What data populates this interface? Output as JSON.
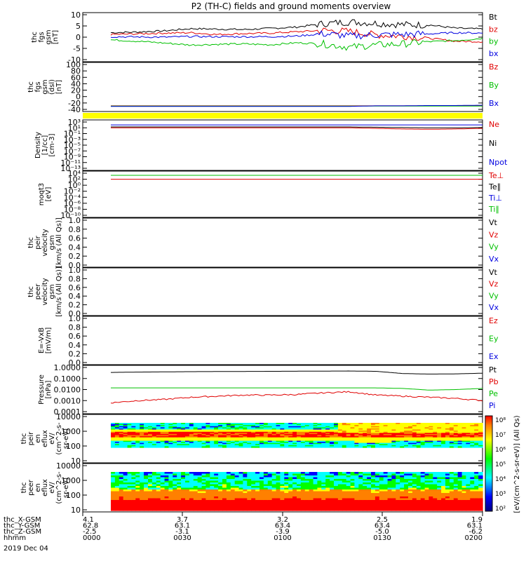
{
  "title": "P2 (TH-C) fields and ground moments overview",
  "panels": [
    {
      "id": "fgs",
      "ylabel": [
        "thc",
        "fgs",
        "gsm",
        "[nT]"
      ],
      "ticks": [
        "10",
        "5",
        "0",
        "-5",
        "-10"
      ],
      "legend": [
        {
          "label": "Bt",
          "color": "#000000"
        },
        {
          "label": "bz",
          "color": "#e00000"
        },
        {
          "label": "by",
          "color": "#00c000"
        },
        {
          "label": "bx",
          "color": "#0000e0"
        }
      ]
    },
    {
      "id": "fgs_dsl",
      "ylabel": [
        "thc",
        "fgs",
        "gsm",
        "(dsl)",
        "[nT]"
      ],
      "ticks": [
        "100",
        "80",
        "60",
        "40",
        "20",
        "0",
        "-20",
        "-40"
      ],
      "legend": [
        {
          "label": "Bz",
          "color": "#e00000"
        },
        {
          "label": "By",
          "color": "#00c000"
        },
        {
          "label": "Bx",
          "color": "#0000e0"
        }
      ]
    },
    {
      "id": "density",
      "ylabel": [
        "Density",
        "[1/cc]",
        "[cm-3]"
      ],
      "ticks": [
        "10³",
        "10¹",
        "10⁻¹",
        "10⁻³",
        "10⁻⁵",
        "10⁻⁷",
        "10⁻⁹",
        "10⁻¹¹",
        "10⁻¹³"
      ],
      "legend": [
        {
          "label": "Ne",
          "color": "#e00000"
        },
        {
          "label": "Ni",
          "color": "#000000"
        },
        {
          "label": "Npot",
          "color": "#0000e0"
        }
      ]
    },
    {
      "id": "temp",
      "ylabel": [
        "moqt3",
        "[eV]"
      ],
      "ticks": [
        "10⁴",
        "10²",
        "10⁰",
        "10⁻²",
        "10⁻⁴",
        "10⁻⁶",
        "10⁻⁸",
        "10⁻¹⁰"
      ],
      "legend": [
        {
          "label": "Te⊥",
          "color": "#e00000"
        },
        {
          "label": "Te∥",
          "color": "#000000"
        },
        {
          "label": "Ti⊥",
          "color": "#0000e0"
        },
        {
          "label": "Ti∥",
          "color": "#00c000"
        }
      ]
    },
    {
      "id": "vi",
      "ylabel": [
        "thc",
        "peir",
        "velocity",
        "gsm",
        "[km/s (All Qs)]"
      ],
      "ticks": [
        "1.0",
        "0.8",
        "0.6",
        "0.4",
        "0.2",
        "0.0"
      ],
      "legend": [
        {
          "label": "Vt",
          "color": "#000000"
        },
        {
          "label": "Vz",
          "color": "#e00000"
        },
        {
          "label": "Vy",
          "color": "#00c000"
        },
        {
          "label": "Vx",
          "color": "#0000e0"
        }
      ]
    },
    {
      "id": "ve",
      "ylabel": [
        "thc",
        "peer",
        "velocity",
        "gsm",
        "[km/s (All Qs)]"
      ],
      "ticks": [
        "1.0",
        "0.8",
        "0.6",
        "0.4",
        "0.2",
        "0.0"
      ],
      "legend": [
        {
          "label": "Vt",
          "color": "#000000"
        },
        {
          "label": "Vz",
          "color": "#e00000"
        },
        {
          "label": "Vy",
          "color": "#00c000"
        },
        {
          "label": "Vx",
          "color": "#0000e0"
        }
      ]
    },
    {
      "id": "efield",
      "ylabel": [
        "E=-VxB",
        "[mV/m]"
      ],
      "ticks": [
        "1.0",
        "0.8",
        "0.6",
        "0.4",
        "0.2",
        "0.0"
      ],
      "legend": [
        {
          "label": "Ez",
          "color": "#e00000"
        },
        {
          "label": "Ey",
          "color": "#00c000"
        },
        {
          "label": "Ex",
          "color": "#0000e0"
        }
      ]
    },
    {
      "id": "pressure",
      "ylabel": [
        "Pressure",
        "[nPa]"
      ],
      "ticks": [
        "1.0000",
        "0.1000",
        "0.0100",
        "0.0010",
        "0.0001"
      ],
      "legend": [
        {
          "label": "Pt",
          "color": "#000000"
        },
        {
          "label": "Pb",
          "color": "#e00000"
        },
        {
          "label": "Pe",
          "color": "#00c000"
        },
        {
          "label": "Pi",
          "color": "#0000e0"
        }
      ]
    },
    {
      "id": "peir_en",
      "ylabel": [
        "thc",
        "peir",
        "en",
        "eflux",
        "eV/",
        "(cm^2-s-",
        "sr-eV)"
      ],
      "ticks": [
        "10000",
        "1000",
        "100",
        "10"
      ]
    },
    {
      "id": "peer_en",
      "ylabel": [
        "thc",
        "peer",
        "en",
        "eflux",
        "eV/",
        "(cm^2-s-",
        "sr-eV)"
      ],
      "ticks": [
        "10000",
        "1000",
        "100",
        "10"
      ]
    }
  ],
  "colorbar": {
    "label": "[eV/(cm^2-s-sr-eV)] (All Qs)",
    "ticks": [
      "10⁸",
      "10⁷",
      "10⁶",
      "10⁵",
      "10⁴",
      "10³",
      "10²"
    ]
  },
  "footer": {
    "rows": [
      {
        "label": "thc_X-GSM",
        "values": [
          "4.1",
          "3.7",
          "3.2",
          "2.5",
          "1.9"
        ]
      },
      {
        "label": "thc_Y-GSM",
        "values": [
          "62.8",
          "63.1",
          "63.4",
          "63.4",
          "63.1"
        ]
      },
      {
        "label": "thc_Z-GSM",
        "values": [
          "-2.5",
          "-3.1",
          "-3.9",
          "-5.0",
          "-6.2"
        ]
      },
      {
        "label": "hhmm",
        "values": [
          "0000",
          "0030",
          "0100",
          "0130",
          "0200"
        ]
      }
    ],
    "date": "2019 Dec 04"
  },
  "colors": {
    "black": "#000000",
    "red": "#e00000",
    "green": "#00c000",
    "blue": "#0000e0",
    "yellow": "#ffff00"
  },
  "chart_data": [
    {
      "type": "line",
      "panel": "fgs",
      "x_range": [
        "0000",
        "0200"
      ],
      "ylim": [
        -10,
        10
      ],
      "series": [
        {
          "name": "Bt",
          "values": [
            2.0,
            2.3,
            2.8,
            3.8,
            3.6,
            3.4,
            3.9,
            4.5,
            6.0,
            6.8,
            6.2,
            5.6,
            5.4,
            4.0,
            3.6
          ]
        },
        {
          "name": "bz",
          "values": [
            1.2,
            1.5,
            1.8,
            2.0,
            1.2,
            1.6,
            1.8,
            2.4,
            3.0,
            2.6,
            1.0,
            0.5,
            -0.5,
            -1.8,
            -2.0
          ]
        },
        {
          "name": "by",
          "values": [
            -1.2,
            -1.8,
            -2.6,
            -3.5,
            -3.2,
            -3.0,
            -3.4,
            -2.5,
            -3.0,
            -4.5,
            -3.5,
            -3.0,
            -2.0,
            -1.5,
            -0.5
          ]
        },
        {
          "name": "bx",
          "values": [
            0.2,
            0.1,
            0.0,
            0.3,
            0.2,
            0.2,
            0.2,
            0.5,
            1.5,
            0.5,
            1.0,
            1.2,
            1.5,
            2.0,
            1.8
          ]
        }
      ]
    },
    {
      "type": "line",
      "panel": "fgs_dsl",
      "x_range": [
        "0000",
        "0200"
      ],
      "ylim": [
        -50,
        100
      ],
      "series": [
        {
          "name": "Bz",
          "values": [
            -38,
            -38,
            -38,
            -38,
            -38,
            -38,
            -38,
            -38,
            -38,
            -38,
            -38,
            -38,
            -38,
            -38,
            -38
          ]
        },
        {
          "name": "By",
          "values": [
            -39,
            -39,
            -39,
            -39,
            -39,
            -39,
            -39,
            -39,
            -39,
            -39,
            -39,
            -39,
            -39,
            -39,
            -39
          ]
        },
        {
          "name": "Bx",
          "values": [
            -40,
            -40,
            -40,
            -40,
            -40,
            -40,
            -40,
            -40,
            -40,
            -40,
            -38,
            -38,
            -37,
            -37,
            -36
          ]
        }
      ]
    },
    {
      "type": "line",
      "panel": "density",
      "x_range": [
        "0000",
        "0200"
      ],
      "ylim_log10": [
        -13,
        3
      ],
      "series": [
        {
          "name": "Ne",
          "values": [
            1.0,
            1.0,
            1.0,
            1.0,
            1.0,
            1.0,
            1.0,
            1.0,
            1.0,
            1.0,
            0.8,
            0.6,
            0.5,
            0.6,
            0.8
          ]
        },
        {
          "name": "Ni",
          "values": [
            1.3,
            1.3,
            1.3,
            1.3,
            1.3,
            1.3,
            1.3,
            1.3,
            1.3,
            1.3,
            1.2,
            1.1,
            1.0,
            1.0,
            1.1
          ]
        },
        {
          "name": "Npot",
          "values": [
            2.0,
            2.0,
            2.0,
            2.0,
            2.0,
            2.0,
            2.0,
            2.0,
            2.0,
            2.0,
            2.0,
            2.0,
            2.0,
            2.0,
            2.0
          ]
        }
      ]
    },
    {
      "type": "line",
      "panel": "temp",
      "x_range": [
        "0000",
        "0200"
      ],
      "ylim_log10": [
        -10,
        4
      ],
      "series": [
        {
          "name": "Te⊥",
          "values": [
            2.0,
            2.0,
            2.0,
            2.0,
            2.0,
            2.0,
            2.0,
            2.0,
            2.0,
            2.0,
            2.0,
            2.0,
            2.0,
            2.0,
            2.0
          ]
        },
        {
          "name": "Ti∥",
          "values": [
            3.3,
            3.3,
            3.3,
            3.3,
            3.3,
            3.3,
            3.3,
            3.3,
            3.3,
            3.3,
            3.3,
            3.3,
            3.3,
            3.3,
            3.3
          ]
        }
      ]
    },
    {
      "type": "line",
      "panel": "pressure",
      "x_range": [
        "0000",
        "0200"
      ],
      "ylim_log10": [
        -4,
        0
      ],
      "series": [
        {
          "name": "Pt",
          "values": [
            -0.45,
            -0.42,
            -0.4,
            -0.38,
            -0.37,
            -0.36,
            -0.35,
            -0.34,
            -0.33,
            -0.32,
            -0.35,
            -0.55,
            -0.6,
            -0.58,
            -0.52
          ]
        },
        {
          "name": "Pb",
          "values": [
            -3.2,
            -3.0,
            -2.9,
            -2.7,
            -2.6,
            -2.5,
            -2.5,
            -2.45,
            -2.3,
            -2.2,
            -2.5,
            -2.6,
            -2.7,
            -2.8,
            -3.0
          ]
        },
        {
          "name": "Pe",
          "values": [
            -1.85,
            -1.85,
            -1.85,
            -1.85,
            -1.85,
            -1.85,
            -1.85,
            -1.85,
            -1.85,
            -1.85,
            -1.85,
            -1.9,
            -2.05,
            -2.0,
            -1.9
          ]
        }
      ]
    }
  ]
}
